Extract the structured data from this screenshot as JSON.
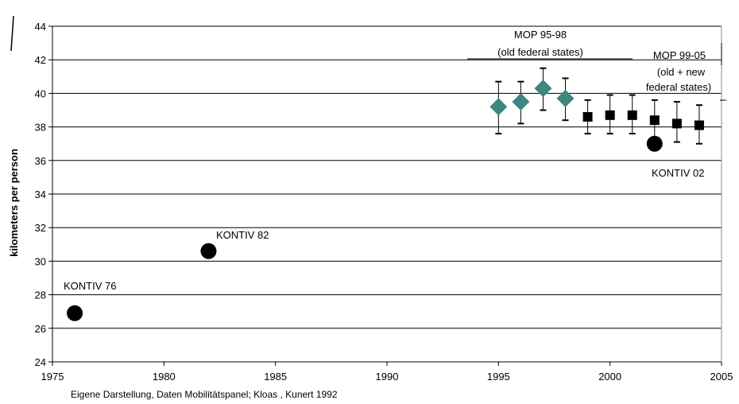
{
  "chart_data": {
    "type": "scatter",
    "title": "",
    "xlabel": "",
    "ylabel": "kilometers per person",
    "xlim": [
      1975,
      2005
    ],
    "ylim": [
      24,
      44
    ],
    "x_ticks": [
      1975,
      1980,
      1985,
      1990,
      1995,
      2000,
      2005
    ],
    "y_ticks": [
      24,
      26,
      28,
      30,
      32,
      34,
      36,
      38,
      40,
      42,
      44
    ],
    "grid": "horizontal",
    "series": [
      {
        "marker": "circle",
        "color": "#000000",
        "points": [
          {
            "x": 1976,
            "y": 26.9
          },
          {
            "x": 1982,
            "y": 30.6
          },
          {
            "x": 2002,
            "y": 37.0
          }
        ]
      },
      {
        "marker": "diamond",
        "color": "#3d8780",
        "points": [
          {
            "x": 1995,
            "y": 39.2,
            "lo": 37.6,
            "hi": 40.7
          },
          {
            "x": 1996,
            "y": 39.5,
            "lo": 38.2,
            "hi": 40.7
          },
          {
            "x": 1997,
            "y": 40.3,
            "lo": 39.0,
            "hi": 41.5
          },
          {
            "x": 1998,
            "y": 39.7,
            "lo": 38.4,
            "hi": 40.9
          }
        ]
      },
      {
        "marker": "square",
        "color": "#000000",
        "points": [
          {
            "x": 1999,
            "y": 38.6,
            "lo": 37.6,
            "hi": 39.6
          },
          {
            "x": 2000,
            "y": 38.7,
            "lo": 37.6,
            "hi": 39.9
          },
          {
            "x": 2001,
            "y": 38.7,
            "lo": 37.6,
            "hi": 39.9
          },
          {
            "x": 2002,
            "y": 38.4,
            "lo": 37.3,
            "hi": 39.6
          },
          {
            "x": 2003,
            "y": 38.2,
            "lo": 37.1,
            "hi": 39.5
          },
          {
            "x": 2004,
            "y": 38.1,
            "lo": 37.0,
            "hi": 39.3
          }
        ]
      }
    ],
    "annotations": [
      {
        "text": "KONTIV 76"
      },
      {
        "text": "KONTIV 82"
      },
      {
        "text": "KONTIV 02"
      },
      {
        "text": "MOP 95-98"
      },
      {
        "text": "(old  federal states)"
      },
      {
        "text": "MOP 99-05"
      },
      {
        "text": "(old  + new"
      },
      {
        "text": "federal states)"
      }
    ],
    "source_note": "Eigene Darstellung, Daten Mobilitätspanel;  Kloas , Kunert 1992"
  }
}
